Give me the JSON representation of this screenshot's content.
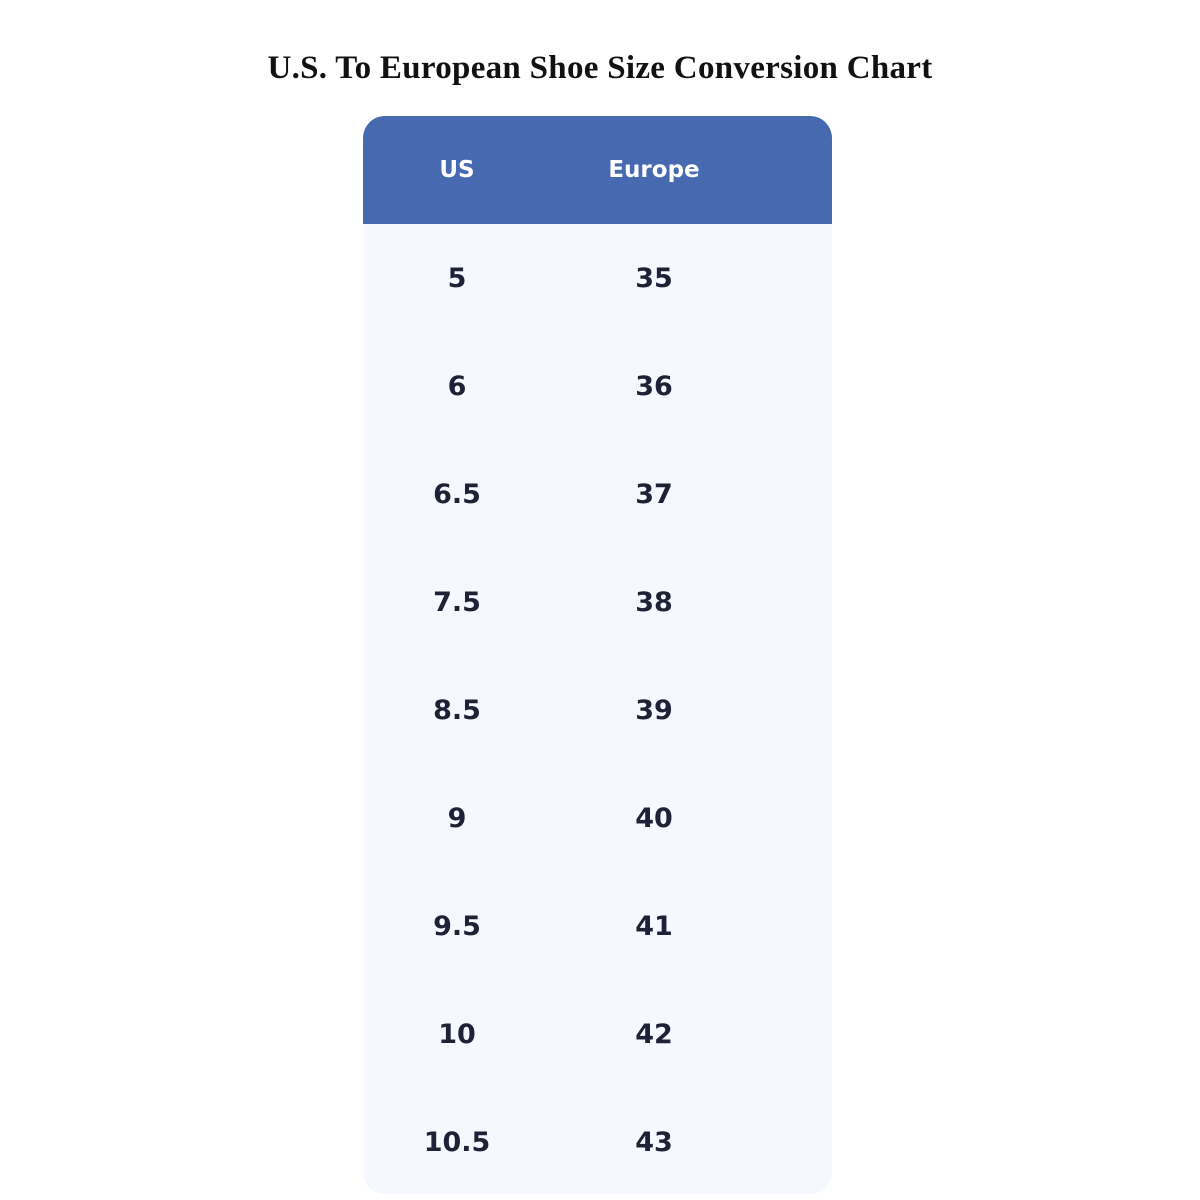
{
  "title": "U.S. To European Shoe Size Conversion Chart",
  "colors": {
    "header_bg": "#4769b0",
    "body_bg": "#f5f8fe",
    "text": "#1f2236"
  },
  "table": {
    "headers": [
      "US",
      "Europe"
    ],
    "rows": [
      [
        "5",
        "35"
      ],
      [
        "6",
        "36"
      ],
      [
        "6.5",
        "37"
      ],
      [
        "7.5",
        "38"
      ],
      [
        "8.5",
        "39"
      ],
      [
        "9",
        "40"
      ],
      [
        "9.5",
        "41"
      ],
      [
        "10",
        "42"
      ],
      [
        "10.5",
        "43"
      ]
    ]
  }
}
